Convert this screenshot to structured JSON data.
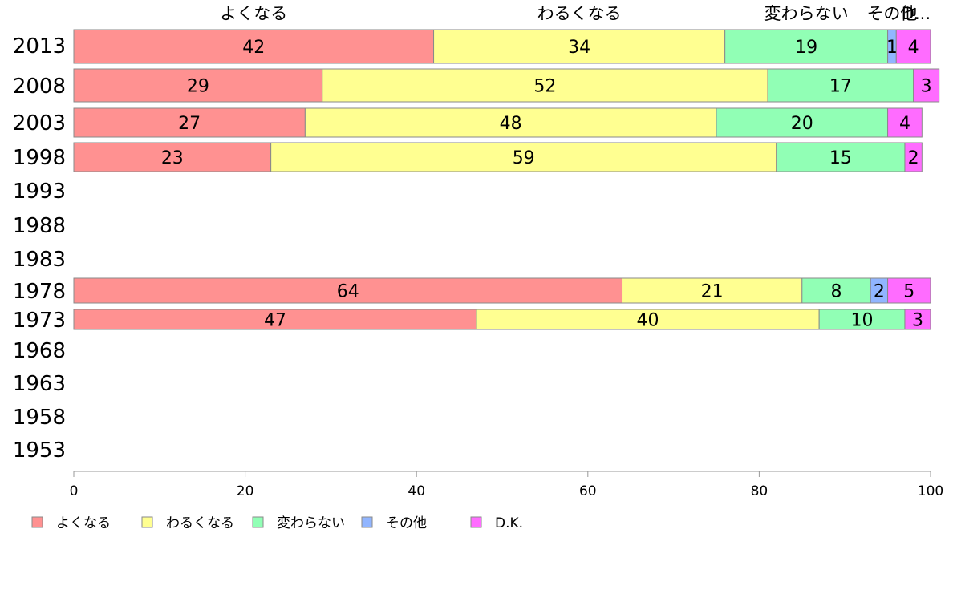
{
  "chart_data": {
    "type": "bar",
    "orientation": "horizontal",
    "stacked": true,
    "categories": [
      "2013",
      "2008",
      "2003",
      "1998",
      "1993",
      "1988",
      "1983",
      "1978",
      "1973",
      "1968",
      "1963",
      "1958",
      "1953"
    ],
    "series": [
      {
        "name": "よくなる",
        "color": "#ff9191",
        "values": [
          42,
          29,
          27,
          23,
          null,
          null,
          null,
          64,
          47,
          null,
          null,
          null,
          null
        ]
      },
      {
        "name": "わるくなる",
        "color": "#ffff91",
        "values": [
          34,
          52,
          48,
          59,
          null,
          null,
          null,
          21,
          40,
          null,
          null,
          null,
          null
        ]
      },
      {
        "name": "変わらない",
        "color": "#91ffb5",
        "values": [
          19,
          17,
          20,
          15,
          null,
          null,
          null,
          8,
          10,
          null,
          null,
          null,
          null
        ]
      },
      {
        "name": "その他",
        "color": "#91b5ff",
        "values": [
          1,
          0,
          0,
          0,
          null,
          null,
          null,
          2,
          0,
          null,
          null,
          null,
          null
        ]
      },
      {
        "name": "D.K.",
        "color": "#ff6cff",
        "values": [
          4,
          3,
          4,
          2,
          null,
          null,
          null,
          5,
          3,
          null,
          null,
          null,
          null
        ]
      }
    ],
    "top_labels": [
      "よくなる",
      "わるくなる",
      "変わらない",
      "その他",
      "D..."
    ],
    "xlim": [
      0,
      100
    ],
    "x_ticks": [
      "0",
      "20",
      "40",
      "60",
      "80",
      "100"
    ],
    "grid": false,
    "legend_position": "bottom-left"
  }
}
